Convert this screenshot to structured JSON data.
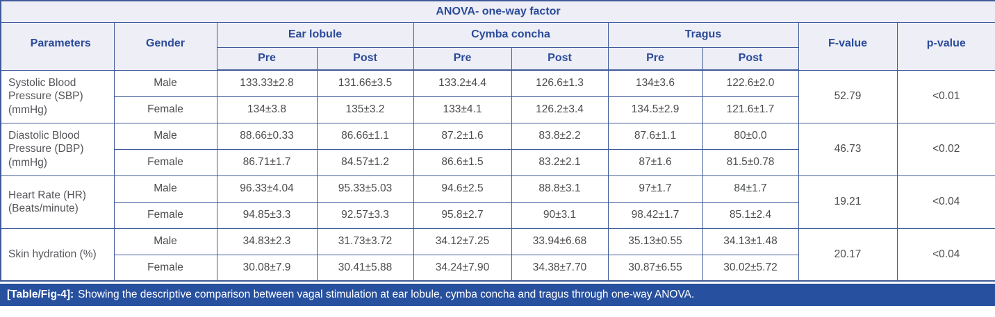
{
  "title": "ANOVA- one-way factor",
  "columns": {
    "parameters": "Parameters",
    "gender": "Gender",
    "groups": [
      {
        "label": "Ear lobule",
        "sub": [
          "Pre",
          "Post"
        ]
      },
      {
        "label": "Cymba concha",
        "sub": [
          "Pre",
          "Post"
        ]
      },
      {
        "label": "Tragus",
        "sub": [
          "Pre",
          "Post"
        ]
      }
    ],
    "f_value": "F-value",
    "p_value": "p-value"
  },
  "rows": [
    {
      "parameter": "Systolic Blood Pressure (SBP) (mmHg)",
      "genders": [
        {
          "label": "Male",
          "values": [
            "133.33±2.8",
            "131.66±3.5",
            "133.2±4.4",
            "126.6±1.3",
            "134±3.6",
            "122.6±2.0"
          ]
        },
        {
          "label": "Female",
          "values": [
            "134±3.8",
            "135±3.2",
            "133±4.1",
            "126.2±3.4",
            "134.5±2.9",
            "121.6±1.7"
          ]
        }
      ],
      "f_value": "52.79",
      "p_value": "<0.01"
    },
    {
      "parameter": "Diastolic Blood Pressure (DBP) (mmHg)",
      "genders": [
        {
          "label": "Male",
          "values": [
            "88.66±0.33",
            "86.66±1.1",
            "87.2±1.6",
            "83.8±2.2",
            "87.6±1.1",
            "80±0.0"
          ]
        },
        {
          "label": "Female",
          "values": [
            "86.71±1.7",
            "84.57±1.2",
            "86.6±1.5",
            "83.2±2.1",
            "87±1.6",
            "81.5±0.78"
          ]
        }
      ],
      "f_value": "46.73",
      "p_value": "<0.02"
    },
    {
      "parameter": "Heart Rate (HR) (Beats/minute)",
      "genders": [
        {
          "label": "Male",
          "values": [
            "96.33±4.04",
            "95.33±5.03",
            "94.6±2.5",
            "88.8±3.1",
            "97±1.7",
            "84±1.7"
          ]
        },
        {
          "label": "Female",
          "values": [
            "94.85±3.3",
            "92.57±3.3",
            "95.8±2.7",
            "90±3.1",
            "98.42±1.7",
            "85.1±2.4"
          ]
        }
      ],
      "f_value": "19.21",
      "p_value": "<0.04"
    },
    {
      "parameter": "Skin hydration (%)",
      "genders": [
        {
          "label": "Male",
          "values": [
            "34.83±2.3",
            "31.73±3.72",
            "34.12±7.25",
            "33.94±6.68",
            "35.13±0.55",
            "34.13±1.48"
          ]
        },
        {
          "label": "Female",
          "values": [
            "30.08±7.9",
            "30.41±5.88",
            "34.24±7.90",
            "34.38±7.70",
            "30.87±6.55",
            "30.02±5.72"
          ]
        }
      ],
      "f_value": "20.17",
      "p_value": "<0.04"
    }
  ],
  "caption": {
    "label": "[Table/Fig-4]:",
    "text": "Showing the descriptive comparison between vagal stimulation at ear lobule, cymba concha and tragus through one-way ANOVA."
  },
  "colors": {
    "header_bg": "#edeef6",
    "header_text": "#2b4a99",
    "border": "#3f5a9a",
    "body_text": "#4b4c4e",
    "caption_bg": "#27509e",
    "caption_text": "#ffffff"
  }
}
